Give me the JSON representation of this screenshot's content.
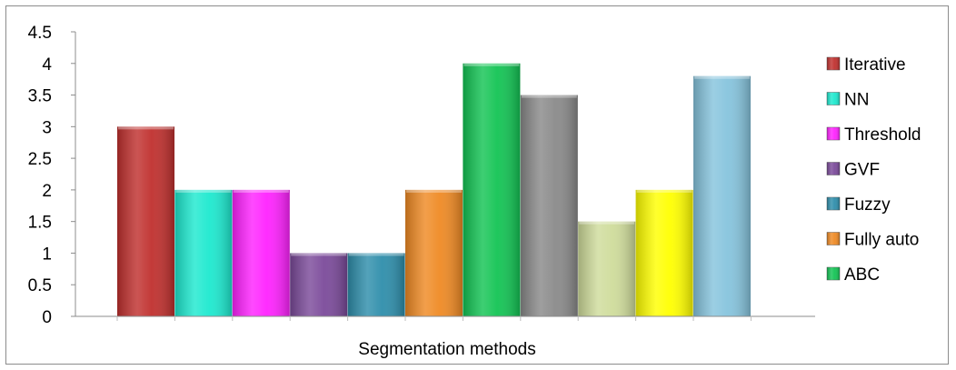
{
  "chart_data": {
    "type": "bar",
    "title": "",
    "xlabel": "Segmentation methods",
    "ylabel": "",
    "ylim": [
      0,
      4.5
    ],
    "yticks": [
      "0",
      "0.5",
      "1",
      "1.5",
      "2",
      "2.5",
      "3",
      "3.5",
      "4",
      "4.5"
    ],
    "grid": false,
    "legend_position": "right",
    "series": [
      {
        "name": "Iterative",
        "value": 3,
        "color": "#c0302e"
      },
      {
        "name": "NN",
        "value": 2,
        "color": "#1de9cf"
      },
      {
        "name": "Threshold",
        "value": 2,
        "color": "#ff22ff"
      },
      {
        "name": "GVF",
        "value": 1,
        "color": "#7b4a9a"
      },
      {
        "name": "Fuzzy",
        "value": 1,
        "color": "#2e8eab"
      },
      {
        "name": "Fully auto",
        "value": 2,
        "color": "#ef8a24"
      },
      {
        "name": "ABC",
        "value": 4,
        "color": "#13c454"
      },
      {
        "name": "",
        "value": 3.5,
        "color": "#8a8a8a"
      },
      {
        "name": "",
        "value": 1.5,
        "color": "#cfdc9b"
      },
      {
        "name": "",
        "value": 2,
        "color": "#ffff00"
      },
      {
        "name": "",
        "value": 3.8,
        "color": "#86c4dd"
      }
    ],
    "legend_entries": [
      "Iterative",
      "NN",
      "Threshold",
      "GVF",
      "Fuzzy",
      "Fully auto",
      "ABC"
    ]
  }
}
